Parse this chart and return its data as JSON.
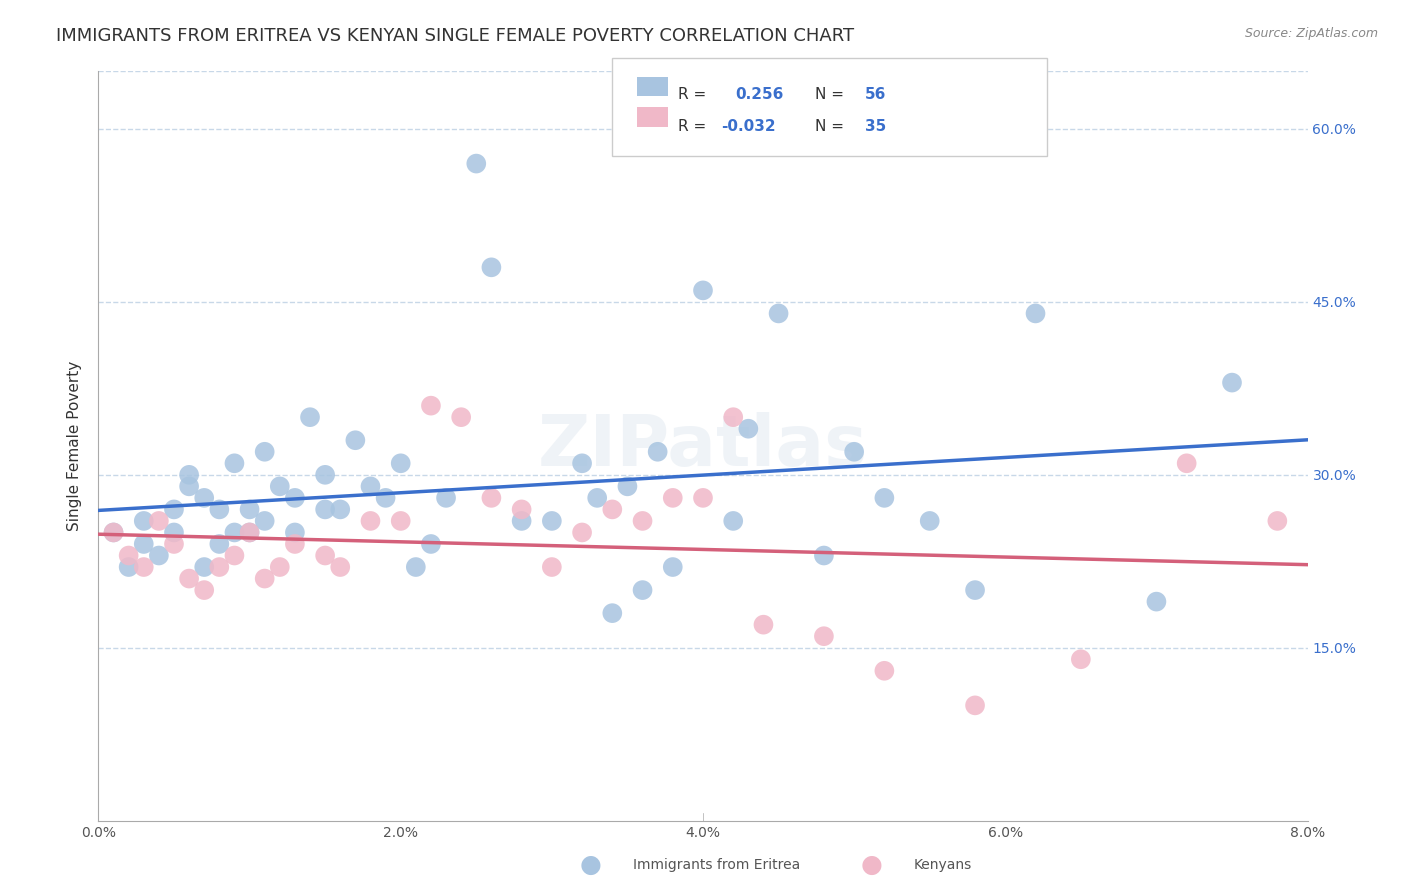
{
  "title": "IMMIGRANTS FROM ERITREA VS KENYAN SINGLE FEMALE POVERTY CORRELATION CHART",
  "source": "Source: ZipAtlas.com",
  "xlabel_bottom": "",
  "ylabel": "Single Female Poverty",
  "legend_bottom": [
    "Immigrants from Eritrea",
    "Kenyans"
  ],
  "legend_r": [
    0.256,
    -0.032
  ],
  "legend_n": [
    56,
    35
  ],
  "xmin": 0.0,
  "xmax": 0.08,
  "ymin": 0.0,
  "ymax": 0.65,
  "yticks": [
    0.15,
    0.3,
    0.45,
    0.6
  ],
  "ytick_labels": [
    "15.0%",
    "30.0%",
    "45.0%",
    "60.0%"
  ],
  "xticks": [
    0.0,
    0.02,
    0.04,
    0.06,
    0.08
  ],
  "xtick_labels": [
    "0.0%",
    "2.0%",
    "4.0%",
    "6.0%",
    "8.0%"
  ],
  "blue_color": "#a8c4e0",
  "blue_line_color": "#3a6fcc",
  "pink_color": "#f0b8c8",
  "pink_line_color": "#d4607a",
  "blue_scatter_x": [
    0.001,
    0.002,
    0.003,
    0.003,
    0.004,
    0.005,
    0.005,
    0.006,
    0.006,
    0.007,
    0.007,
    0.008,
    0.008,
    0.009,
    0.009,
    0.01,
    0.01,
    0.011,
    0.011,
    0.012,
    0.013,
    0.013,
    0.014,
    0.015,
    0.015,
    0.016,
    0.017,
    0.018,
    0.019,
    0.02,
    0.021,
    0.022,
    0.023,
    0.025,
    0.026,
    0.028,
    0.03,
    0.032,
    0.033,
    0.034,
    0.035,
    0.036,
    0.037,
    0.038,
    0.04,
    0.042,
    0.043,
    0.045,
    0.048,
    0.05,
    0.052,
    0.055,
    0.058,
    0.062,
    0.07,
    0.075
  ],
  "blue_scatter_y": [
    0.25,
    0.22,
    0.24,
    0.26,
    0.23,
    0.27,
    0.25,
    0.3,
    0.29,
    0.22,
    0.28,
    0.27,
    0.24,
    0.31,
    0.25,
    0.25,
    0.27,
    0.32,
    0.26,
    0.29,
    0.28,
    0.25,
    0.35,
    0.3,
    0.27,
    0.27,
    0.33,
    0.29,
    0.28,
    0.31,
    0.22,
    0.24,
    0.28,
    0.57,
    0.48,
    0.26,
    0.26,
    0.31,
    0.28,
    0.18,
    0.29,
    0.2,
    0.32,
    0.22,
    0.46,
    0.26,
    0.34,
    0.44,
    0.23,
    0.32,
    0.28,
    0.26,
    0.2,
    0.44,
    0.19,
    0.38
  ],
  "pink_scatter_x": [
    0.001,
    0.002,
    0.003,
    0.004,
    0.005,
    0.006,
    0.007,
    0.008,
    0.009,
    0.01,
    0.011,
    0.012,
    0.013,
    0.015,
    0.016,
    0.018,
    0.02,
    0.022,
    0.024,
    0.026,
    0.028,
    0.03,
    0.032,
    0.034,
    0.036,
    0.038,
    0.04,
    0.042,
    0.044,
    0.048,
    0.052,
    0.058,
    0.065,
    0.072,
    0.078
  ],
  "pink_scatter_y": [
    0.25,
    0.23,
    0.22,
    0.26,
    0.24,
    0.21,
    0.2,
    0.22,
    0.23,
    0.25,
    0.21,
    0.22,
    0.24,
    0.23,
    0.22,
    0.26,
    0.26,
    0.36,
    0.35,
    0.28,
    0.27,
    0.22,
    0.25,
    0.27,
    0.26,
    0.28,
    0.28,
    0.35,
    0.17,
    0.16,
    0.13,
    0.1,
    0.14,
    0.31,
    0.26
  ],
  "watermark": "ZIPatlas",
  "background_color": "#ffffff",
  "grid_color": "#c8d8e8",
  "title_fontsize": 13,
  "axis_label_fontsize": 11,
  "tick_fontsize": 10
}
